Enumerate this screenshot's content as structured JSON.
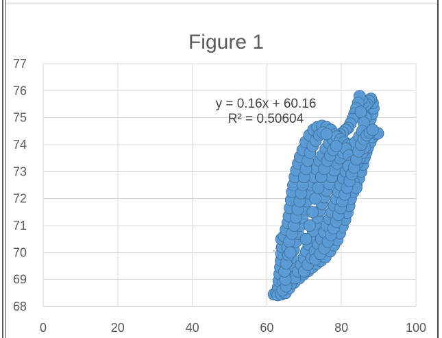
{
  "chart_data": {
    "type": "scatter",
    "title": "Figure 1",
    "xlabel": "",
    "ylabel": "",
    "xlim": [
      0,
      100
    ],
    "ylim": [
      68,
      77
    ],
    "xticks": [
      0,
      20,
      40,
      60,
      80,
      100
    ],
    "yticks": [
      68,
      69,
      70,
      71,
      72,
      73,
      74,
      75,
      76,
      77
    ],
    "grid": true,
    "legend": "none",
    "trendline": {
      "equation": "y = 0.16x + 60.16",
      "r2_label": "R² = 0.50604",
      "slope": 0.16,
      "intercept": 60.16,
      "style": "dotted",
      "color": "#5b9bd5"
    },
    "series": [
      {
        "color": "#5b9bd5",
        "border_color": "#41719c",
        "marker": "circle",
        "points": [
          [
            61.9,
            68.45
          ],
          [
            62.6,
            68.5
          ],
          [
            63.0,
            68.7
          ],
          [
            63.2,
            68.95
          ],
          [
            63.4,
            69.2
          ],
          [
            63.6,
            69.45
          ],
          [
            63.8,
            69.7
          ],
          [
            63.9,
            69.95
          ],
          [
            64.1,
            70.2
          ],
          [
            63.9,
            70.5
          ],
          [
            64.6,
            70.6
          ],
          [
            65.1,
            70.85
          ],
          [
            65.6,
            71.1
          ],
          [
            65.9,
            71.35
          ],
          [
            66.2,
            71.65
          ],
          [
            66.5,
            71.95
          ],
          [
            66.8,
            72.25
          ],
          [
            67.1,
            72.5
          ],
          [
            67.5,
            72.8
          ],
          [
            67.9,
            73.05
          ],
          [
            68.4,
            73.3
          ],
          [
            68.9,
            73.55
          ],
          [
            69.6,
            73.8
          ],
          [
            70.4,
            74.1
          ],
          [
            71.4,
            74.35
          ],
          [
            72.5,
            74.55
          ],
          [
            73.6,
            74.65
          ],
          [
            74.8,
            74.7
          ],
          [
            76.0,
            74.65
          ],
          [
            77.2,
            74.55
          ],
          [
            62.9,
            68.42
          ],
          [
            63.9,
            68.45
          ],
          [
            65.0,
            68.5
          ],
          [
            66.0,
            68.68
          ],
          [
            67.3,
            68.88
          ],
          [
            68.7,
            69.05
          ],
          [
            69.9,
            69.2
          ],
          [
            71.1,
            69.32
          ],
          [
            72.2,
            69.45
          ],
          [
            73.3,
            69.58
          ],
          [
            74.5,
            69.7
          ],
          [
            75.7,
            69.83
          ],
          [
            77.0,
            70.05
          ],
          [
            78.0,
            70.27
          ],
          [
            78.9,
            70.47
          ],
          [
            79.6,
            70.72
          ],
          [
            80.3,
            70.97
          ],
          [
            81.0,
            71.22
          ],
          [
            81.6,
            71.48
          ],
          [
            82.1,
            71.73
          ],
          [
            82.5,
            71.99
          ],
          [
            83.2,
            72.25
          ],
          [
            84.0,
            72.5
          ],
          [
            84.7,
            72.75
          ],
          [
            85.3,
            73.0
          ],
          [
            85.8,
            73.26
          ],
          [
            86.2,
            73.52
          ],
          [
            86.7,
            73.72
          ],
          [
            87.1,
            73.9
          ],
          [
            87.8,
            74.1
          ],
          [
            88.4,
            74.28
          ],
          [
            89.3,
            74.4
          ],
          [
            89.8,
            74.42
          ],
          [
            86.5,
            74.55
          ],
          [
            87.2,
            74.75
          ],
          [
            87.8,
            74.95
          ],
          [
            88.3,
            75.15
          ],
          [
            88.6,
            75.35
          ],
          [
            88.4,
            75.55
          ],
          [
            87.9,
            75.7
          ],
          [
            87.4,
            75.62
          ],
          [
            86.9,
            75.5
          ],
          [
            86.4,
            75.45
          ],
          [
            85.9,
            75.55
          ],
          [
            85.4,
            75.68
          ],
          [
            84.9,
            75.8
          ],
          [
            84.5,
            75.55
          ],
          [
            84.0,
            75.35
          ],
          [
            83.5,
            75.15
          ],
          [
            83.0,
            74.95
          ],
          [
            82.4,
            74.78
          ],
          [
            81.8,
            74.62
          ],
          [
            81.1,
            74.55
          ],
          [
            80.4,
            74.45
          ],
          [
            79.6,
            74.38
          ],
          [
            78.9,
            74.32
          ],
          [
            78.2,
            74.38
          ],
          [
            85.8,
            75.12
          ],
          [
            86.5,
            75.0
          ],
          [
            85.2,
            75.22
          ],
          [
            86.0,
            74.82
          ],
          [
            64.5,
            68.9
          ],
          [
            65.3,
            69.2
          ],
          [
            66.0,
            69.5
          ],
          [
            66.6,
            69.8
          ],
          [
            67.2,
            70.1
          ],
          [
            67.8,
            70.4
          ],
          [
            68.3,
            70.7
          ],
          [
            68.9,
            71.0
          ],
          [
            69.5,
            71.3
          ],
          [
            70.1,
            71.6
          ],
          [
            70.7,
            71.9
          ],
          [
            71.3,
            72.2
          ],
          [
            71.9,
            72.5
          ],
          [
            72.6,
            72.8
          ],
          [
            73.3,
            73.1
          ],
          [
            74.1,
            73.4
          ],
          [
            74.9,
            73.6
          ],
          [
            75.8,
            73.85
          ],
          [
            76.7,
            74.05
          ],
          [
            77.7,
            74.2
          ],
          [
            78.7,
            74.3
          ],
          [
            79.8,
            74.2
          ],
          [
            80.8,
            74.1
          ],
          [
            81.8,
            74.0
          ],
          [
            82.8,
            74.0
          ],
          [
            83.8,
            74.1
          ],
          [
            84.8,
            74.3
          ],
          [
            85.6,
            74.5
          ],
          [
            66.5,
            68.85
          ],
          [
            67.5,
            69.05
          ],
          [
            68.4,
            69.3
          ],
          [
            69.2,
            69.55
          ],
          [
            69.9,
            69.8
          ],
          [
            70.6,
            70.05
          ],
          [
            71.2,
            70.3
          ],
          [
            71.8,
            70.55
          ],
          [
            72.4,
            70.8
          ],
          [
            73.0,
            71.05
          ],
          [
            73.6,
            71.3
          ],
          [
            74.2,
            71.55
          ],
          [
            74.8,
            71.8
          ],
          [
            75.4,
            72.05
          ],
          [
            76.0,
            72.3
          ],
          [
            76.7,
            72.55
          ],
          [
            77.4,
            72.8
          ],
          [
            78.1,
            73.05
          ],
          [
            78.8,
            73.3
          ],
          [
            79.6,
            73.5
          ],
          [
            80.4,
            73.7
          ],
          [
            81.2,
            73.85
          ],
          [
            82.0,
            73.6
          ],
          [
            82.8,
            73.35
          ],
          [
            83.5,
            73.2
          ],
          [
            84.2,
            73.3
          ],
          [
            84.9,
            73.5
          ],
          [
            85.6,
            73.7
          ],
          [
            86.3,
            73.9
          ],
          [
            70.0,
            69.3
          ],
          [
            71.0,
            69.55
          ],
          [
            72.0,
            69.8
          ],
          [
            72.9,
            70.05
          ],
          [
            73.8,
            70.3
          ],
          [
            74.6,
            70.5
          ],
          [
            75.4,
            70.75
          ],
          [
            76.1,
            71.0
          ],
          [
            76.8,
            71.25
          ],
          [
            77.4,
            71.5
          ],
          [
            78.0,
            71.75
          ],
          [
            78.6,
            72.0
          ],
          [
            79.2,
            72.25
          ],
          [
            79.8,
            72.5
          ],
          [
            80.5,
            72.75
          ],
          [
            81.2,
            73.0
          ],
          [
            81.9,
            73.2
          ],
          [
            82.7,
            72.9
          ],
          [
            83.3,
            72.6
          ],
          [
            84.0,
            72.4
          ],
          [
            65.5,
            70.2
          ],
          [
            66.0,
            70.4
          ],
          [
            66.7,
            70.7
          ],
          [
            67.3,
            71.0
          ],
          [
            67.8,
            71.3
          ],
          [
            68.3,
            71.6
          ],
          [
            68.8,
            71.9
          ],
          [
            69.2,
            72.2
          ],
          [
            69.6,
            72.5
          ],
          [
            70.0,
            72.8
          ],
          [
            70.5,
            73.1
          ],
          [
            71.0,
            73.4
          ],
          [
            71.6,
            73.7
          ],
          [
            72.3,
            73.95
          ],
          [
            73.1,
            74.15
          ],
          [
            74.0,
            74.35
          ],
          [
            75.0,
            74.45
          ],
          [
            76.0,
            74.4
          ],
          [
            64.2,
            68.6
          ],
          [
            65.2,
            68.75
          ],
          [
            65.0,
            69.0
          ],
          [
            64.7,
            69.3
          ],
          [
            65.2,
            69.6
          ],
          [
            65.8,
            69.9
          ],
          [
            66.3,
            70.0
          ],
          [
            70.5,
            70.5
          ],
          [
            71.5,
            71.0
          ],
          [
            72.3,
            71.5
          ],
          [
            73.0,
            72.0
          ],
          [
            73.8,
            72.4
          ],
          [
            74.6,
            72.8
          ],
          [
            75.4,
            73.1
          ],
          [
            76.2,
            73.4
          ],
          [
            77.0,
            73.6
          ],
          [
            77.8,
            73.8
          ],
          [
            78.6,
            73.95
          ],
          [
            73.0,
            69.75
          ],
          [
            74.3,
            69.95
          ],
          [
            75.4,
            70.15
          ],
          [
            76.4,
            70.4
          ],
          [
            77.2,
            70.65
          ],
          [
            77.9,
            70.9
          ],
          [
            78.6,
            71.15
          ],
          [
            79.2,
            71.4
          ],
          [
            79.8,
            71.65
          ],
          [
            80.3,
            71.9
          ],
          [
            80.9,
            72.15
          ],
          [
            81.5,
            72.4
          ],
          [
            82.2,
            72.65
          ],
          [
            82.8,
            72.9
          ],
          [
            83.4,
            73.15
          ],
          [
            84.0,
            73.45
          ],
          [
            84.6,
            73.75
          ],
          [
            85.3,
            74.0
          ],
          [
            86.0,
            74.2
          ],
          [
            86.8,
            74.35
          ],
          [
            87.6,
            74.45
          ],
          [
            88.4,
            74.55
          ]
        ]
      }
    ]
  }
}
